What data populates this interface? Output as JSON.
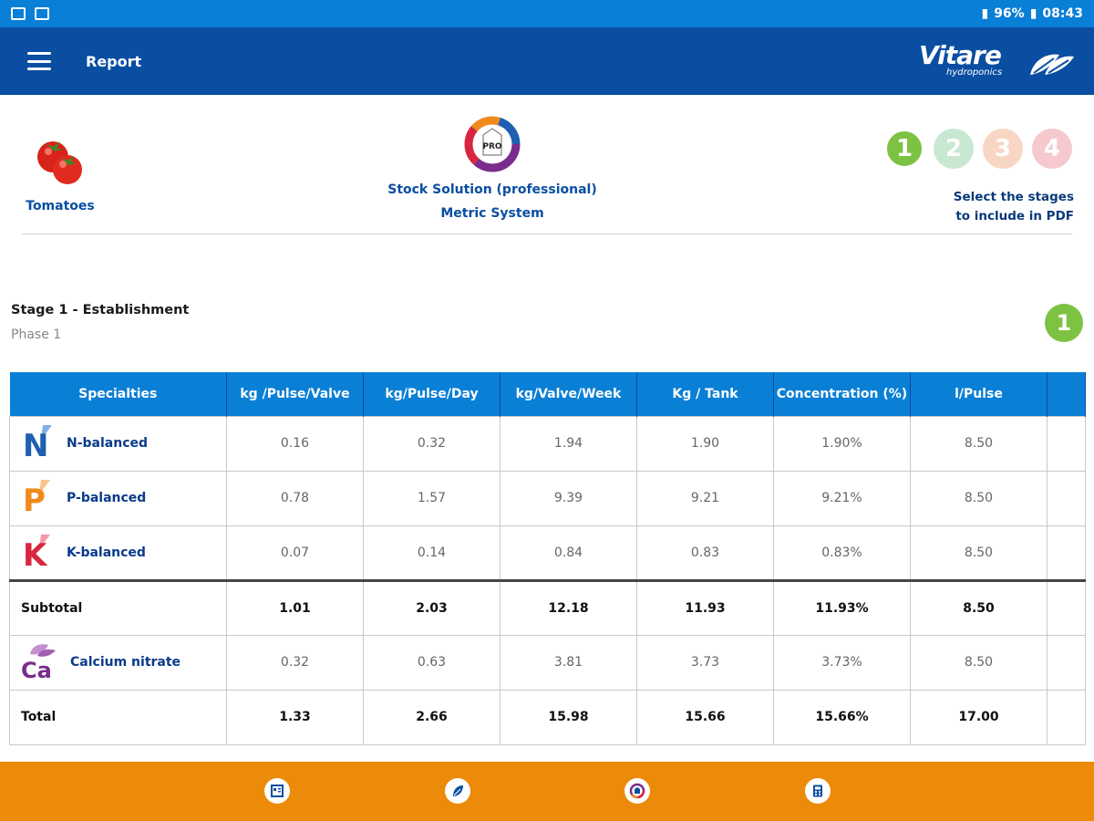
{
  "statusbar": {
    "battery": "96%",
    "time": "08:43"
  },
  "appbar": {
    "title": "Report",
    "logo_word": "Vitare",
    "logo_sub": "hydroponics"
  },
  "crop": {
    "label": "Tomatoes"
  },
  "solution": {
    "badge": "PRO",
    "name": "Stock Solution (professional)",
    "system": "Metric System"
  },
  "stages": {
    "items": [
      {
        "label": "1",
        "color": "#7dc242",
        "selected": true
      },
      {
        "label": "2",
        "color": "#c9e8d2",
        "selected": false
      },
      {
        "label": "3",
        "color": "#f8d6c4",
        "selected": false
      },
      {
        "label": "4",
        "color": "#f5c9ce",
        "selected": false
      }
    ],
    "caption_line1": "Select the stages",
    "caption_line2": "to include in PDF"
  },
  "stage": {
    "title": "Stage 1 - Establishment",
    "phase": "Phase 1",
    "badge": "1"
  },
  "table": {
    "headers": [
      "Specialties",
      "kg /Pulse/Valve",
      "kg/Pulse/Day",
      "kg/Valve/Week",
      "Kg / Tank",
      "Concentration (%)",
      "l/Pulse",
      ""
    ],
    "rows": [
      {
        "icon": "N",
        "icon_color": "#1e5fb0",
        "name": "N-balanced",
        "values": [
          "0.16",
          "0.32",
          "1.94",
          "1.90",
          "1.90%",
          "8.50"
        ]
      },
      {
        "icon": "P",
        "icon_color": "#f08a1c",
        "name": "P-balanced",
        "values": [
          "0.78",
          "1.57",
          "9.39",
          "9.21",
          "9.21%",
          "8.50"
        ]
      },
      {
        "icon": "K",
        "icon_color": "#d8263f",
        "name": "K-balanced",
        "values": [
          "0.07",
          "0.14",
          "0.84",
          "0.83",
          "0.83%",
          "8.50"
        ]
      }
    ],
    "subtotal": {
      "name": "Subtotal",
      "values": [
        "1.01",
        "2.03",
        "12.18",
        "11.93",
        "11.93%",
        "8.50"
      ]
    },
    "calcium": {
      "icon": "Ca",
      "icon_color": "#7a2c8c",
      "name": "Calcium nitrate",
      "values": [
        "0.32",
        "0.63",
        "3.81",
        "3.73",
        "3.73%",
        "8.50"
      ]
    },
    "total": {
      "name": "Total",
      "values": [
        "1.33",
        "2.66",
        "15.98",
        "15.66",
        "15.66%",
        "17.00"
      ]
    }
  },
  "bottomnav": [
    {
      "name": "report-icon"
    },
    {
      "name": "leaf-icon"
    },
    {
      "name": "stock-solution-icon"
    },
    {
      "name": "calculator-icon"
    }
  ]
}
